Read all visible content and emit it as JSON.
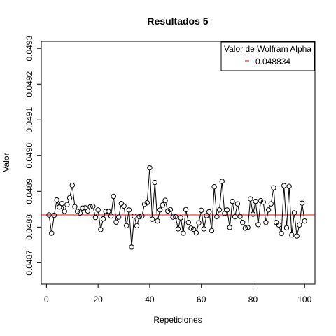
{
  "chart_data": {
    "type": "line",
    "title": "Resultados 5",
    "xlabel": "Repeticiones",
    "ylabel": "Valor",
    "xlim": [
      -2,
      104
    ],
    "ylim": [
      0.04864,
      0.04932
    ],
    "x_ticks": [
      0,
      20,
      40,
      60,
      80,
      100
    ],
    "x_tick_labels": [
      "0",
      "20",
      "40",
      "60",
      "80",
      "100"
    ],
    "y_ticks": [
      0.0487,
      0.0488,
      0.0489,
      0.049,
      0.0491,
      0.0492,
      0.0493
    ],
    "y_tick_labels": [
      "0.0487",
      "0.0488",
      "0.0489",
      "0.0490",
      "0.0491",
      "0.0492",
      "0.0493"
    ],
    "grid": false,
    "legend": {
      "title": "Valor de Wolfram Alpha",
      "entries": [
        {
          "label": "0.048834",
          "color": "#ff0000"
        }
      ],
      "position": "top-right"
    },
    "reference_line": {
      "y": 0.048834,
      "color": "#ff0000"
    },
    "series": [
      {
        "marker": "open-circle",
        "line_color": "#000000",
        "x": [
          1,
          2,
          3,
          4,
          5,
          6,
          7,
          8,
          9,
          10,
          11,
          12,
          13,
          14,
          15,
          16,
          17,
          18,
          19,
          20,
          21,
          22,
          23,
          24,
          25,
          26,
          27,
          28,
          29,
          30,
          31,
          32,
          33,
          34,
          35,
          36,
          37,
          38,
          39,
          40,
          41,
          42,
          43,
          44,
          45,
          46,
          47,
          48,
          49,
          50,
          51,
          52,
          53,
          54,
          55,
          56,
          57,
          58,
          59,
          60,
          61,
          62,
          63,
          64,
          65,
          66,
          67,
          68,
          69,
          70,
          71,
          72,
          73,
          74,
          75,
          76,
          77,
          78,
          79,
          80,
          81,
          82,
          83,
          84,
          85,
          86,
          87,
          88,
          89,
          90,
          91,
          92,
          93,
          94,
          95,
          96,
          97,
          98,
          99,
          100
        ],
        "values": [
          0.048834,
          0.048783,
          0.048833,
          0.048876,
          0.048856,
          0.048866,
          0.048844,
          0.048863,
          0.048882,
          0.048917,
          0.048857,
          0.048844,
          0.048839,
          0.048853,
          0.048854,
          0.048845,
          0.048857,
          0.048858,
          0.048827,
          0.048848,
          0.048793,
          0.048823,
          0.048844,
          0.048844,
          0.048831,
          0.048886,
          0.048814,
          0.048828,
          0.048866,
          0.048859,
          0.048804,
          0.048848,
          0.048744,
          0.048831,
          0.048804,
          0.048829,
          0.048831,
          0.048864,
          0.048868,
          0.048966,
          0.048822,
          0.048925,
          0.048817,
          0.048848,
          0.048862,
          0.048875,
          0.048845,
          0.048849,
          0.048828,
          0.048829,
          0.048795,
          0.048826,
          0.048783,
          0.048849,
          0.048813,
          0.048797,
          0.048794,
          0.048784,
          0.048812,
          0.048847,
          0.048795,
          0.048832,
          0.048843,
          0.04879,
          0.048913,
          0.048829,
          0.048848,
          0.048928,
          0.048838,
          0.048848,
          0.048799,
          0.048872,
          0.048829,
          0.048865,
          0.04883,
          0.048813,
          0.048797,
          0.048799,
          0.048879,
          0.048836,
          0.048872,
          0.048807,
          0.048874,
          0.04887,
          0.048813,
          0.048848,
          0.048865,
          0.04891,
          0.048813,
          0.048806,
          0.048782,
          0.048916,
          0.048798,
          0.048914,
          0.048778,
          0.04884,
          0.048775,
          0.048806,
          0.048867,
          0.048817
        ]
      }
    ]
  }
}
